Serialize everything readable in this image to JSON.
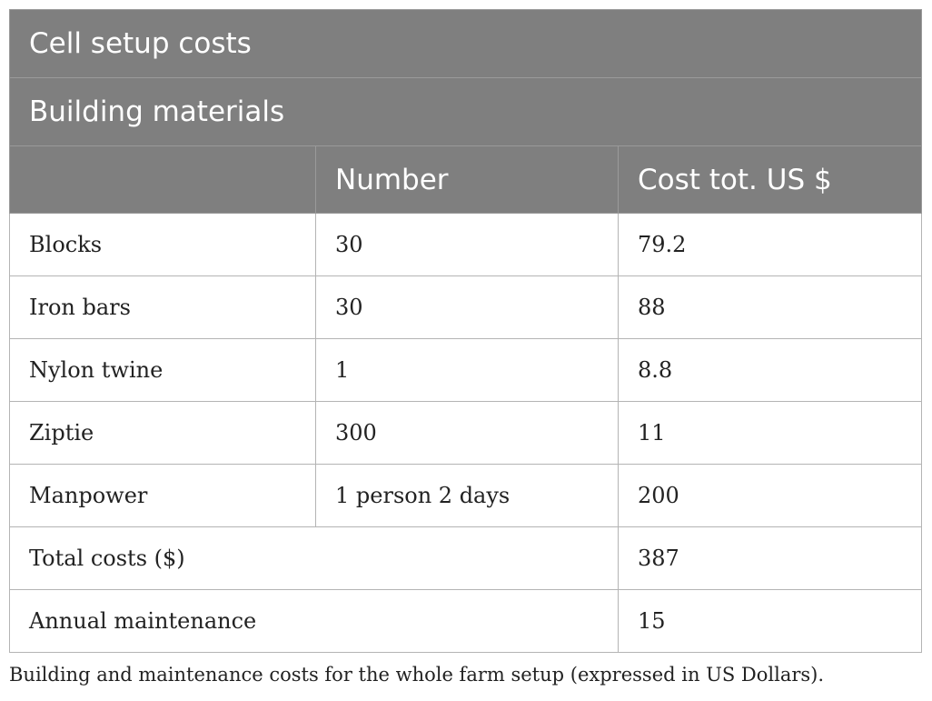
{
  "table": {
    "title": "Cell setup costs",
    "subtitle": "Building materials",
    "headers": [
      "",
      "Number",
      "Cost tot. US $"
    ],
    "rows": [
      {
        "item": "Blocks",
        "number": "30",
        "cost": "79.2"
      },
      {
        "item": "Iron bars",
        "number": "30",
        "cost": "88"
      },
      {
        "item": "Nylon twine",
        "number": "1",
        "cost": "8.8"
      },
      {
        "item": "Ziptie",
        "number": "300",
        "cost": "11"
      },
      {
        "item": "Manpower",
        "number": "1 person 2 days",
        "cost": "200"
      }
    ],
    "summary": [
      {
        "label": "Total costs ($)",
        "value": "387"
      },
      {
        "label": "Annual maintenance",
        "value": "15"
      }
    ]
  },
  "caption": "Building and maintenance costs for the whole farm setup (expressed in US Dollars)."
}
